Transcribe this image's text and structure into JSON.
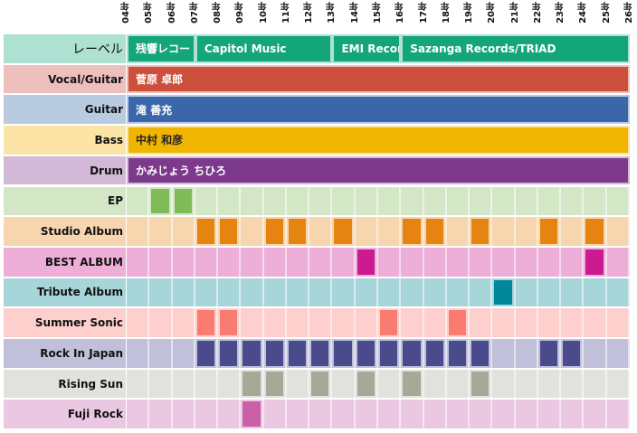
{
  "chart_data": {
    "type": "timeline",
    "title": "",
    "years": [
      "04年",
      "05年",
      "06年",
      "07年",
      "08年",
      "09年",
      "10年",
      "11年",
      "12年",
      "13年",
      "14年",
      "15年",
      "16年",
      "17年",
      "18年",
      "19年",
      "20年",
      "21年",
      "22年",
      "23年",
      "24年",
      "25年",
      "26年"
    ],
    "label_row": {
      "name": "レーベル",
      "bg": "#aee1d2",
      "color": "#15a57a",
      "bands": [
        {
          "label": "残響レコー",
          "start": 0,
          "end": 3
        },
        {
          "label": "Capitol Music",
          "start": 3,
          "end": 9
        },
        {
          "label": "EMI Recor..",
          "start": 9,
          "end": 12
        },
        {
          "label": "Sazanga Records/TRIAD",
          "start": 12,
          "end": 22
        }
      ]
    },
    "member_rows": [
      {
        "name": "Vocal/Guitar",
        "value": "菅原 卓郎",
        "bg": "#eec0bd",
        "color": "#cd503d"
      },
      {
        "name": "Guitar",
        "value": "滝 善充",
        "bg": "#b9cbe1",
        "color": "#3a67aa"
      },
      {
        "name": "Bass",
        "value": "中村 和彦",
        "bg": "#fbe4a5",
        "color": "#f0b500",
        "text_color": "#222"
      },
      {
        "name": "Drum",
        "value": "かみじょう ちひろ",
        "bg": "#d2b9d8",
        "color": "#7d3a8c"
      }
    ],
    "event_rows": [
      {
        "name": "EP",
        "bg": "#d3e6c6",
        "color": "#80bb5a",
        "columns": [
          1,
          2
        ]
      },
      {
        "name": "Studio Album",
        "bg": "#f7d5ae",
        "color": "#e68411",
        "columns": [
          3,
          4,
          6,
          7,
          9,
          12,
          13,
          15,
          18,
          20
        ]
      },
      {
        "name": "BEST ALBUM",
        "bg": "#edaed7",
        "color": "#cc1b90",
        "columns": [
          10,
          20
        ]
      },
      {
        "name": "Tribute Album",
        "bg": "#a6d6da",
        "color": "#00879a",
        "columns": [
          16
        ]
      },
      {
        "name": "Summer Sonic",
        "bg": "#fdd0cd",
        "color": "#fa7b6f",
        "columns": [
          3,
          4,
          11,
          14
        ]
      },
      {
        "name": "Rock In Japan",
        "bg": "#c0c0da",
        "color": "#4a4b8c",
        "columns": [
          3,
          4,
          5,
          6,
          7,
          8,
          9,
          10,
          11,
          12,
          13,
          14,
          15,
          18,
          19
        ]
      },
      {
        "name": "Rising Sun",
        "bg": "#e0e2dd",
        "color": "#a4a998",
        "columns": [
          5,
          6,
          8,
          10,
          12,
          15
        ]
      },
      {
        "name": "Fuji Rock",
        "bg": "#eac8e1",
        "color": "#c960a8",
        "columns": [
          5
        ]
      }
    ]
  }
}
